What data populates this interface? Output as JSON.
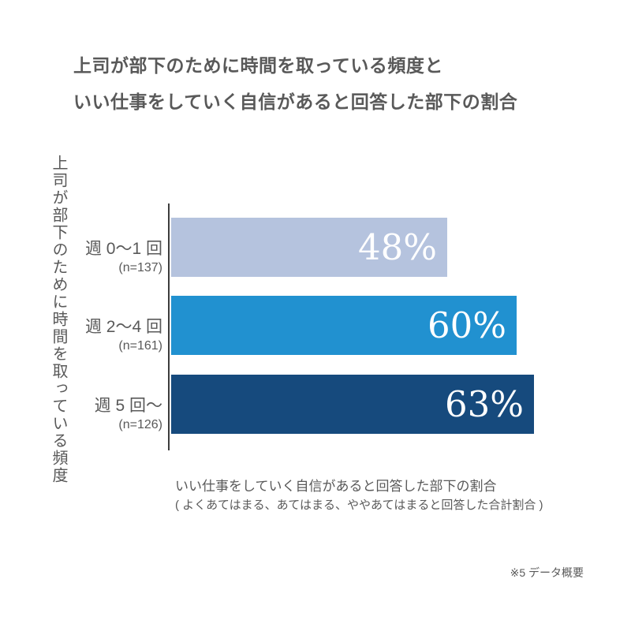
{
  "title": {
    "line1": "上司が部下のために時間を取っている頻度と",
    "line2": "いい仕事をしていく自信があると回答した部下の割合"
  },
  "y_axis_label": "上司が部下のために時間を取っている頻度",
  "chart_data": {
    "type": "bar",
    "orientation": "horizontal",
    "categories": [
      "週 0〜1 回",
      "週 2〜4 回",
      "週 5 回〜"
    ],
    "sample_sizes": [
      "(n=137)",
      "(n=161)",
      "(n=126)"
    ],
    "values": [
      48,
      60,
      63
    ],
    "value_labels": [
      "48%",
      "60%",
      "63%"
    ],
    "bar_colors": [
      "#b5c3de",
      "#2191d0",
      "#164a7d"
    ],
    "xlabel_line1": "いい仕事をしていく自信があると回答した部下の割合",
    "xlabel_line2": "( よくあてはまる、あてはまる、ややあてはまると回答した合計割合 )",
    "xlim": [
      0,
      80
    ],
    "grid": false,
    "legend": "none"
  },
  "footnote": "※5 データ概要",
  "colors": {
    "text": "#595959",
    "axis_line": "#3d3d3d",
    "value_text": "#ffffff",
    "background": "#ffffff"
  }
}
